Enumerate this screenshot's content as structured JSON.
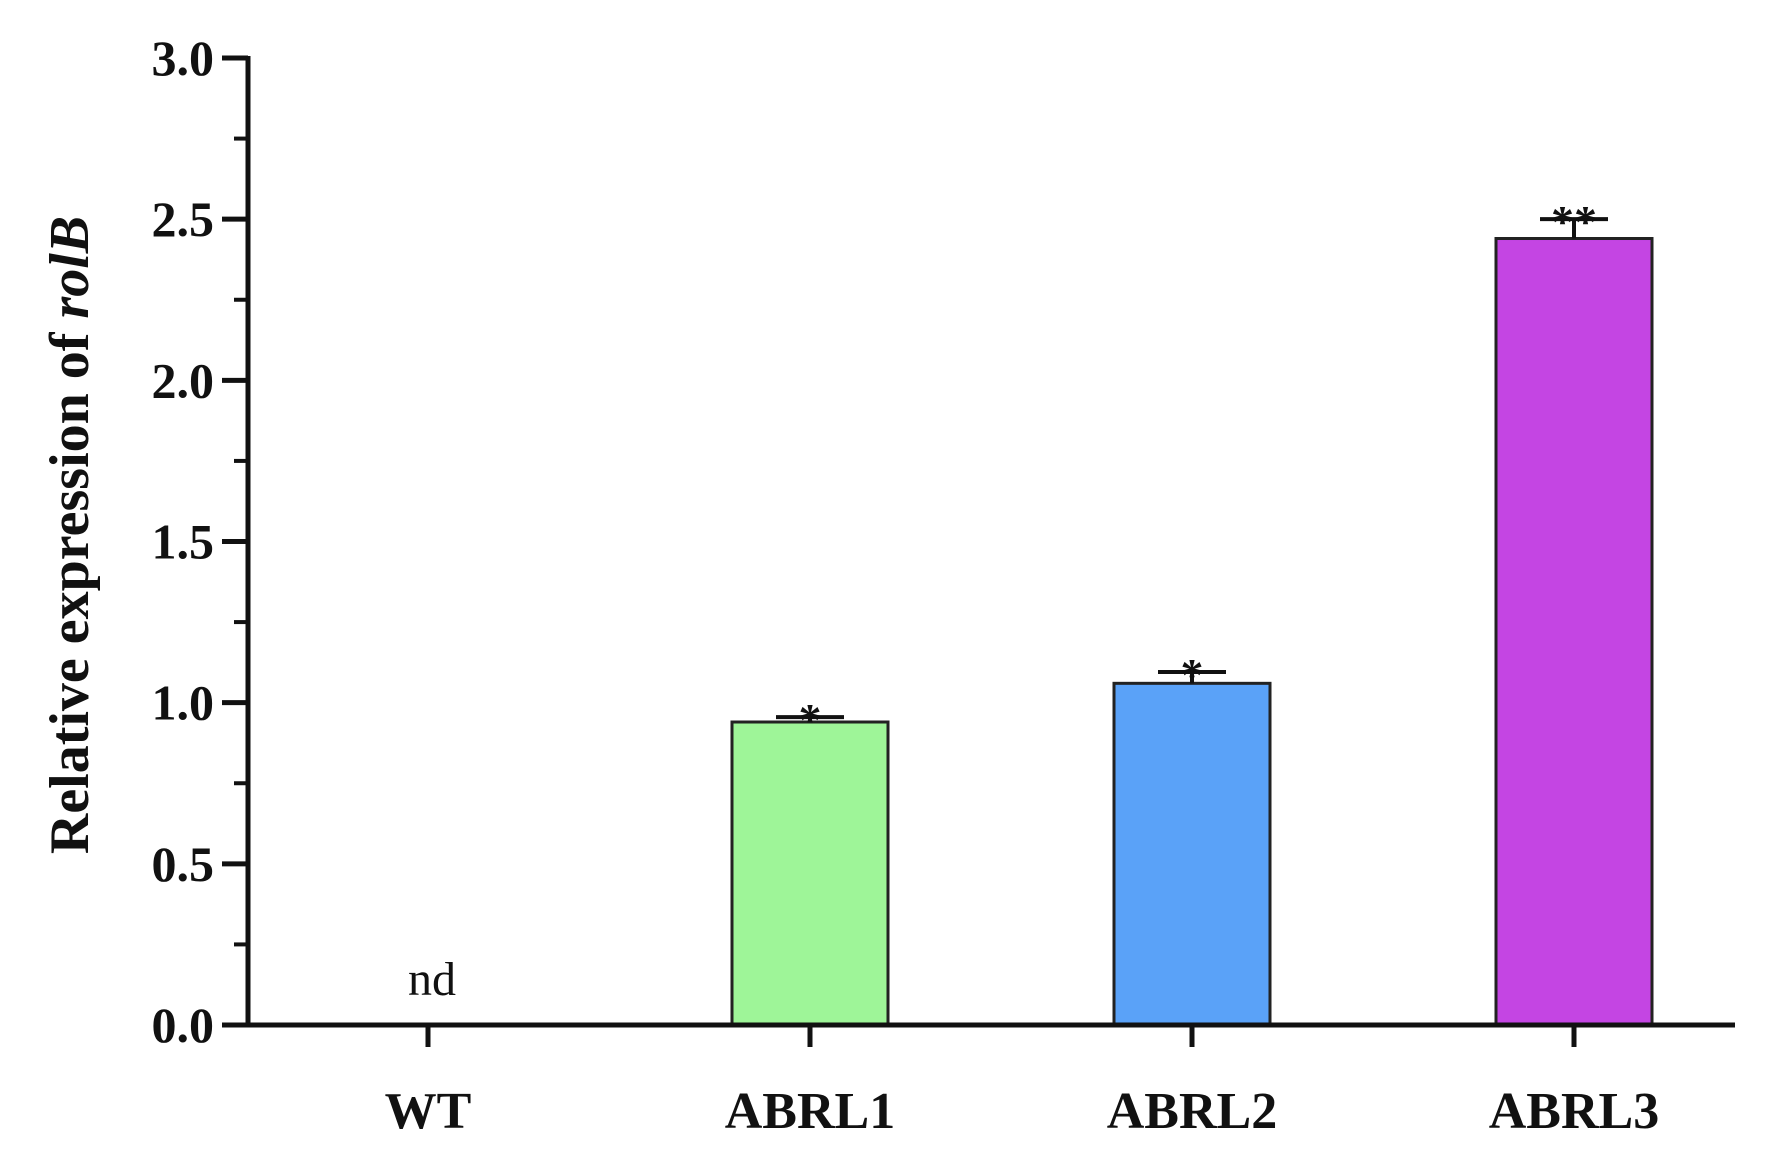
{
  "chart_data": {
    "type": "bar",
    "ylabel": {
      "prefix": "Relative expression of ",
      "gene": "rolB"
    },
    "xlabel": "",
    "title": "",
    "categories": [
      "WT",
      "ABRL1",
      "ABRL2",
      "ABRL3"
    ],
    "values": [
      0,
      0.94,
      1.06,
      2.44
    ],
    "errors": [
      0,
      0.015,
      0.035,
      0.06
    ],
    "notes": [
      "nd",
      "",
      "",
      ""
    ],
    "significance": [
      "",
      "*",
      "*",
      "**"
    ],
    "colors": [
      "#ffffff",
      "#9ef598",
      "#5aa2f8",
      "#c445e3"
    ],
    "ylim": [
      0,
      3.0
    ],
    "yticks": [
      "0.0",
      "0.5",
      "1.0",
      "1.5",
      "2.0",
      "2.5",
      "3.0"
    ],
    "ytick_values": [
      0,
      0.5,
      1.0,
      1.5,
      2.0,
      2.5,
      3.0
    ],
    "minor_tick_step": 0.25,
    "grid": false,
    "legend": "none"
  }
}
